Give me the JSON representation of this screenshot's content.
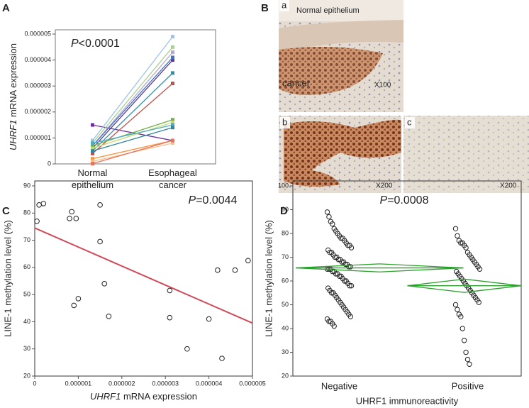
{
  "panel_labels": [
    "A",
    "B",
    "C",
    "D"
  ],
  "micrographs": [
    {
      "label": "a",
      "texts": [
        "Normal epithelium",
        "cancer",
        "X100"
      ]
    },
    {
      "label": "b",
      "texts": [
        "X200"
      ]
    },
    {
      "label": "c",
      "texts": [
        "X200"
      ]
    }
  ],
  "chart_data": [
    {
      "type": "line",
      "annotation": "P<0.0001",
      "y_label": "UHRF1 mRNA expression",
      "categories": [
        "Normal epithelium",
        "Esophageal cancer"
      ],
      "ylim": [
        0,
        5e-06
      ],
      "yticks": [
        0,
        1e-06,
        2e-06,
        3e-06,
        4e-06,
        5e-06
      ],
      "series": [
        {
          "color": "#7030a0",
          "values": [
            1.5e-06,
            9e-07
          ]
        },
        {
          "color": "#9dc3e6",
          "values": [
            9e-07,
            4.9e-06
          ]
        },
        {
          "color": "#a9d18e",
          "values": [
            8e-07,
            4.5e-06
          ]
        },
        {
          "color": "#b4a7d6",
          "values": [
            7e-07,
            4.3e-06
          ]
        },
        {
          "color": "#5b3a8c",
          "values": [
            6e-07,
            4e-06
          ]
        },
        {
          "color": "#4472c4",
          "values": [
            7e-07,
            4.1e-06
          ]
        },
        {
          "color": "#2e8fa8",
          "values": [
            5e-07,
            3.5e-06
          ]
        },
        {
          "color": "#c0504d",
          "values": [
            4e-07,
            3.1e-06
          ]
        },
        {
          "color": "#70ad47",
          "values": [
            7e-07,
            1.7e-06
          ]
        },
        {
          "color": "#c5d96b",
          "values": [
            6e-07,
            1.6e-06
          ]
        },
        {
          "color": "#4bacc6",
          "values": [
            8e-07,
            1.5e-06
          ]
        },
        {
          "color": "#31859c",
          "values": [
            5e-07,
            1.4e-06
          ]
        },
        {
          "color": "#f79646",
          "values": [
            2e-07,
            9e-07
          ]
        },
        {
          "color": "#fabf8f",
          "values": [
            1e-07,
            8e-07
          ]
        },
        {
          "color": "#e6735c",
          "values": [
            1e-08,
            9e-07
          ]
        }
      ]
    },
    {
      "type": "scatter",
      "annotation": "P=0.0044",
      "x_label": "UHRF1 mRNA expression",
      "y_label": "LINE-1 methylation level (%)",
      "xlim": [
        0,
        5e-06
      ],
      "xticks": [
        0,
        1e-06,
        2e-06,
        3e-06,
        4e-06,
        5e-06
      ],
      "ylim": [
        20,
        90
      ],
      "yticks": [
        20,
        30,
        40,
        50,
        60,
        70,
        80,
        90
      ],
      "x": [
        5e-08,
        1e-07,
        2e-07,
        8e-07,
        8.5e-07,
        9.5e-07,
        9e-07,
        1e-06,
        1.5e-06,
        1.5e-06,
        1.6e-06,
        1.7e-06,
        3.1e-06,
        3.1e-06,
        3.5e-06,
        4e-06,
        4.2e-06,
        4.3e-06,
        4.6e-06,
        4.9e-06
      ],
      "values": [
        77,
        83,
        83.5,
        78,
        80.5,
        78,
        46,
        48.5,
        83,
        69.5,
        54,
        42,
        51.5,
        41.5,
        30,
        41,
        59,
        26.5,
        59,
        62.5
      ],
      "fit_line": {
        "x": [
          0,
          5e-06
        ],
        "y": [
          74.5,
          39.5
        ],
        "color": "#d04a5a"
      }
    },
    {
      "type": "strip",
      "annotation": "P=0.0008",
      "x_label": "UHRF1 immunoreactivity",
      "y_label": "LINE-1 methylation level (%)",
      "categories": [
        "Negative",
        "Positive"
      ],
      "ylim": [
        20,
        100
      ],
      "yticks": [
        20,
        30,
        40,
        50,
        60,
        70,
        80,
        90,
        100
      ],
      "color": "#2ca02c",
      "groups": [
        [
          89,
          87,
          85,
          84,
          82,
          81,
          80,
          79,
          78,
          78,
          77,
          76,
          75,
          75,
          74,
          73,
          72,
          72,
          71,
          70,
          70,
          69,
          69,
          68,
          68,
          67,
          67,
          66,
          66,
          65,
          65,
          65,
          64,
          64,
          63,
          63,
          62,
          62,
          61,
          60,
          60,
          59,
          58,
          58,
          57,
          56,
          55,
          55,
          54,
          53,
          52,
          51,
          50,
          49,
          48,
          47,
          46,
          45,
          44,
          43,
          43,
          42,
          41
        ],
        [
          82,
          79,
          77,
          76,
          76,
          75,
          74,
          72,
          71,
          70,
          69,
          68,
          67,
          66,
          65,
          64,
          63,
          62,
          61,
          60,
          59,
          58,
          57,
          56,
          55,
          54,
          53,
          52,
          51,
          50,
          48,
          46,
          45,
          40,
          35,
          30,
          27,
          25
        ]
      ],
      "means": [
        65.5,
        58
      ],
      "ci": [
        [
          63.8,
          67.2
        ],
        [
          55.2,
          60.8
        ]
      ]
    }
  ]
}
